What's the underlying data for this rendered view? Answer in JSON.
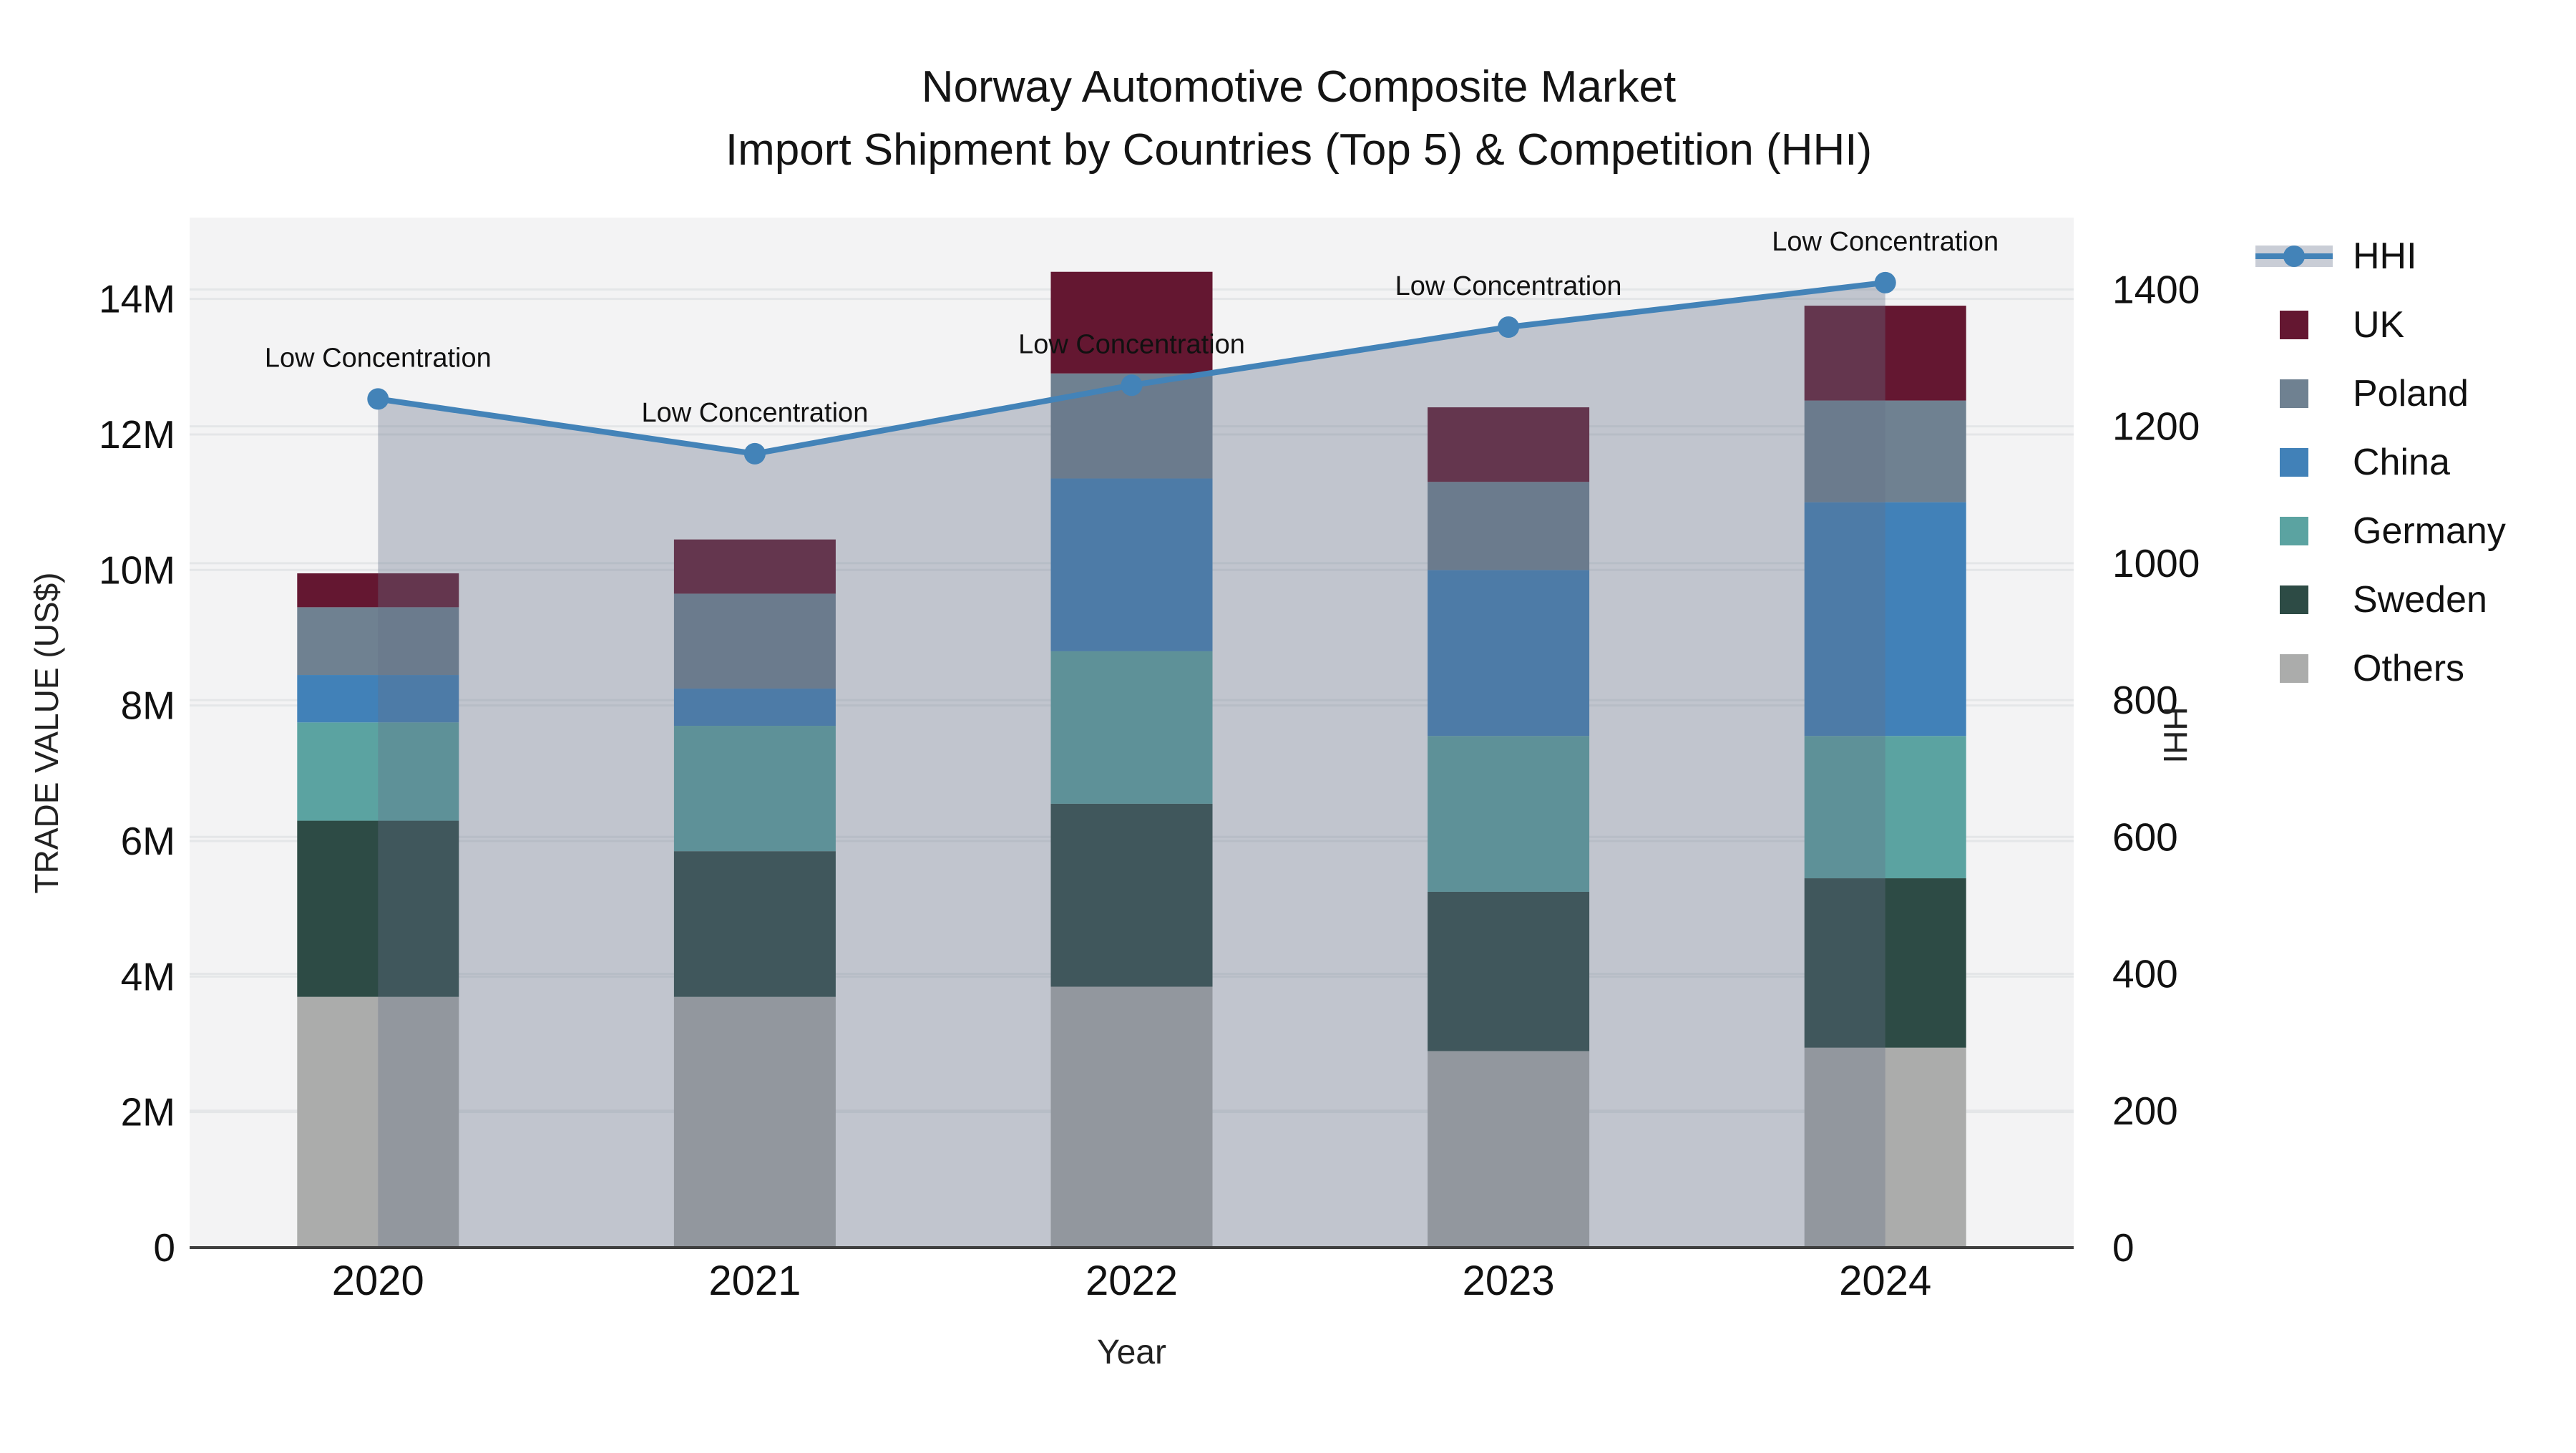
{
  "title": {
    "line1": "Norway Automotive Composite Market",
    "line2": "Import Shipment by Countries (Top 5) & Competition (HHI)"
  },
  "axes": {
    "x_title": "Year",
    "y_left_title": "TRADE VALUE (US$)",
    "y_right_title": "HHI"
  },
  "legend": {
    "items": [
      {
        "label": "HHI",
        "type": "line",
        "color": "#4383b8",
        "band": "#c9cdd6"
      },
      {
        "label": "UK",
        "type": "square",
        "color": "#641731"
      },
      {
        "label": "Poland",
        "type": "square",
        "color": "#6f8191"
      },
      {
        "label": "China",
        "type": "square",
        "color": "#4181b8"
      },
      {
        "label": "Germany",
        "type": "square",
        "color": "#5ba3a1"
      },
      {
        "label": "Sweden",
        "type": "square",
        "color": "#2d4b45"
      },
      {
        "label": "Others",
        "type": "square",
        "color": "#abacab"
      }
    ]
  },
  "chart_data": {
    "type": "bar+line",
    "title": "Norway Automotive Composite Market — Import Shipment by Countries (Top 5) & Competition (HHI)",
    "xlabel": "Year",
    "ylabel_left": "TRADE VALUE (US$)",
    "ylabel_right": "HHI",
    "categories": [
      "2020",
      "2021",
      "2022",
      "2023",
      "2024"
    ],
    "stack_order_bottom_to_top": [
      "Others",
      "Sweden",
      "Germany",
      "China",
      "Poland",
      "UK"
    ],
    "series": [
      {
        "name": "Others",
        "color": "#abacab",
        "values": [
          3700000,
          3700000,
          3850000,
          2900000,
          2950000
        ]
      },
      {
        "name": "Sweden",
        "color": "#2d4b45",
        "values": [
          2600000,
          2150000,
          2700000,
          2350000,
          2500000
        ]
      },
      {
        "name": "Germany",
        "color": "#5ba3a1",
        "values": [
          1450000,
          1850000,
          2250000,
          2300000,
          2100000
        ]
      },
      {
        "name": "China",
        "color": "#4181b8",
        "values": [
          700000,
          550000,
          2550000,
          2450000,
          3450000
        ]
      },
      {
        "name": "Poland",
        "color": "#6f8191",
        "values": [
          1000000,
          1400000,
          1550000,
          1300000,
          1500000
        ]
      },
      {
        "name": "UK",
        "color": "#641731",
        "values": [
          500000,
          800000,
          1500000,
          1100000,
          1400000
        ]
      }
    ],
    "bar_totals": [
      9950000,
      10450000,
      14400000,
      12400000,
      13900000
    ],
    "hhi": {
      "name": "HHI",
      "color": "#4383b8",
      "area_fill": "rgba(100,112,135,0.35)",
      "values": [
        1240,
        1160,
        1260,
        1345,
        1410
      ]
    },
    "annotations": [
      "Low Concentration",
      "Low Concentration",
      "Low Concentration",
      "Low Concentration",
      "Low Concentration"
    ],
    "y_left_axis": {
      "ticks": [
        0,
        2000000,
        4000000,
        6000000,
        8000000,
        10000000,
        12000000,
        14000000
      ],
      "tick_labels": [
        "0",
        "2M",
        "4M",
        "6M",
        "8M",
        "10M",
        "12M",
        "14M"
      ],
      "range": [
        0,
        15200000
      ]
    },
    "y_right_axis": {
      "ticks": [
        0,
        200,
        400,
        600,
        800,
        1000,
        1200,
        1400
      ],
      "tick_labels": [
        "0",
        "200",
        "400",
        "600",
        "800",
        "1000",
        "1200",
        "1400"
      ],
      "range": [
        0,
        1505
      ]
    },
    "grid": true,
    "legend_position": "right"
  },
  "style": {
    "plot_bg": "#f3f3f4",
    "grid_color": "#e4e6e8",
    "axis_line_color": "#3f3f3f",
    "text_color": "#111111"
  }
}
